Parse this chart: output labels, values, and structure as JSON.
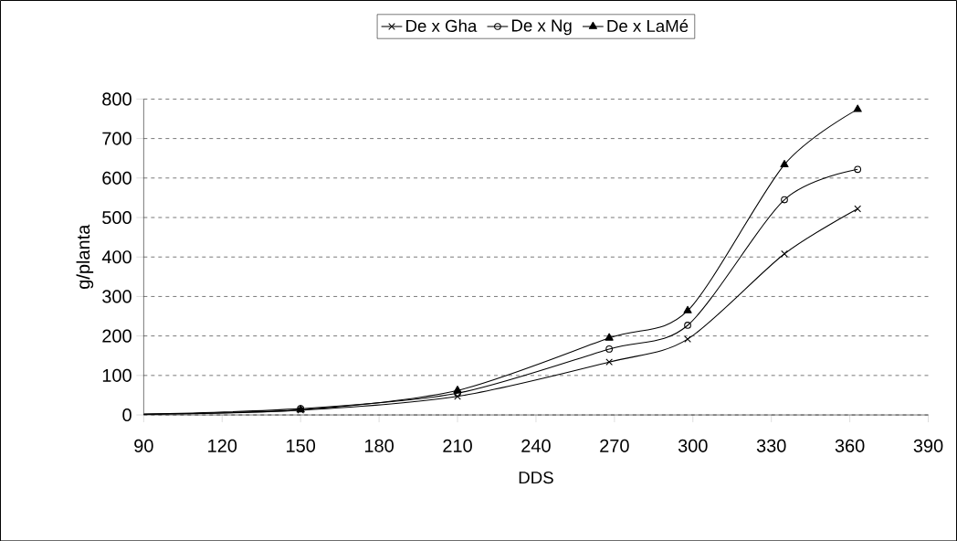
{
  "chart_data": {
    "type": "line",
    "xlabel": "DDS",
    "ylabel": "g/planta",
    "x": [
      90,
      150,
      210,
      268,
      298,
      335,
      363
    ],
    "series": [
      {
        "name": "De x Gha",
        "color": "#000000",
        "marker": "cross",
        "values": [
          2,
          12,
          47,
          134,
          192,
          408,
          522
        ]
      },
      {
        "name": "De x Ng",
        "color": "#000000",
        "marker": "circle",
        "values": [
          2,
          16,
          55,
          167,
          227,
          545,
          622
        ]
      },
      {
        "name": "De x LaMé",
        "color": "#000000",
        "marker": "triangle",
        "values": [
          2,
          13,
          62,
          195,
          264,
          634,
          774
        ]
      }
    ],
    "xlim": [
      90,
      390
    ],
    "xticks": [
      90,
      120,
      150,
      180,
      210,
      240,
      270,
      300,
      330,
      360,
      390
    ],
    "ylim": [
      0,
      800
    ],
    "yticks": [
      0,
      100,
      200,
      300,
      400,
      500,
      600,
      700,
      800
    ],
    "grid": "y",
    "legend": "top",
    "line_style": "solid"
  }
}
